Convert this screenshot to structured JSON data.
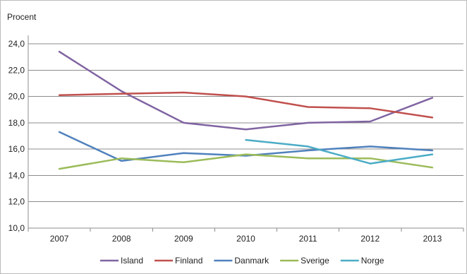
{
  "chart_data": {
    "type": "line",
    "title": "",
    "xlabel": "",
    "ylabel": "Procent",
    "categories": [
      "2007",
      "2008",
      "2009",
      "2010",
      "2011",
      "2012",
      "2013"
    ],
    "y_tick_labels": [
      "10,0",
      "12,0",
      "14,0",
      "16,0",
      "18,0",
      "20,0",
      "22,0",
      "24,0"
    ],
    "ylim": [
      10,
      25.5
    ],
    "grid": "horizontal",
    "legend_position": "bottom",
    "series": [
      {
        "name": "Island",
        "color": "#8064a2",
        "values": [
          23.4,
          20.4,
          18.0,
          17.5,
          18.0,
          18.1,
          19.9
        ]
      },
      {
        "name": "Finland",
        "color": "#c0504d",
        "values": [
          20.1,
          20.2,
          20.3,
          20.0,
          19.2,
          19.1,
          18.4
        ]
      },
      {
        "name": "Danmark",
        "color": "#4f81bd",
        "values": [
          17.3,
          15.1,
          15.7,
          15.5,
          15.9,
          16.2,
          15.9
        ]
      },
      {
        "name": "Sverige",
        "color": "#9bbb59",
        "values": [
          14.5,
          15.3,
          15.0,
          15.6,
          15.3,
          15.3,
          14.6
        ]
      },
      {
        "name": "Norge",
        "color": "#4bacc6",
        "values": [
          null,
          null,
          null,
          16.7,
          16.2,
          14.9,
          15.6
        ]
      }
    ]
  }
}
